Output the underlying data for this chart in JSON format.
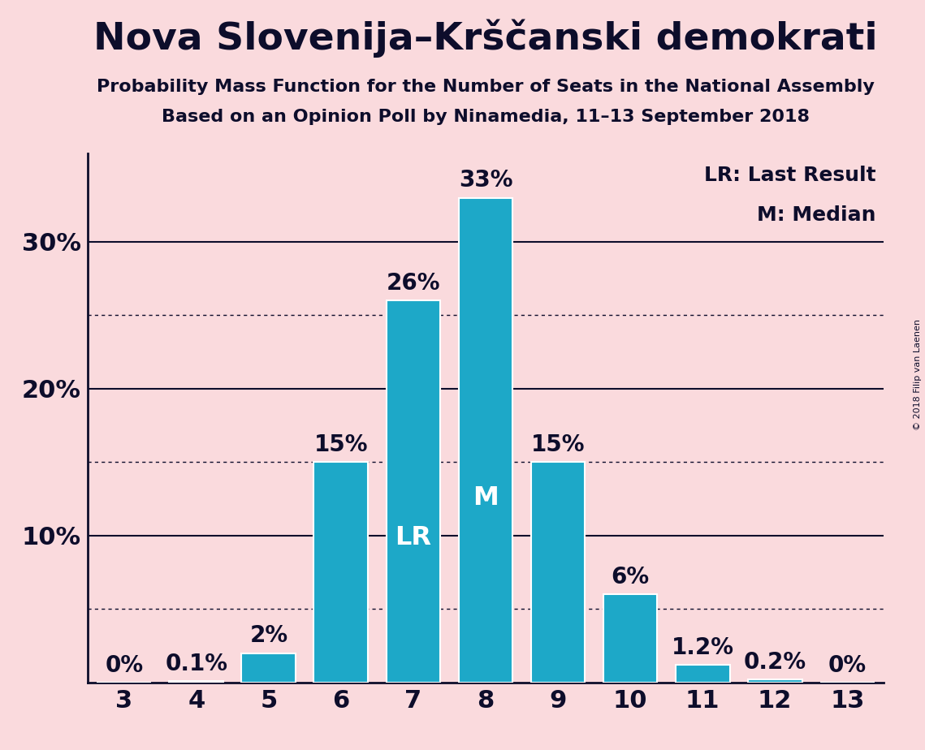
{
  "title": "Nova Slovenija–Krščanski demokrati",
  "subtitle1": "Probability Mass Function for the Number of Seats in the National Assembly",
  "subtitle2": "Based on an Opinion Poll by Ninamedia, 11–13 September 2018",
  "copyright": "© 2018 Filip van Laenen",
  "categories": [
    3,
    4,
    5,
    6,
    7,
    8,
    9,
    10,
    11,
    12,
    13
  ],
  "values": [
    0.0,
    0.1,
    2.0,
    15.0,
    26.0,
    33.0,
    15.0,
    6.0,
    1.2,
    0.2,
    0.0
  ],
  "labels": [
    "0%",
    "0.1%",
    "2%",
    "15%",
    "26%",
    "33%",
    "15%",
    "6%",
    "1.2%",
    "0.2%",
    "0%"
  ],
  "bar_color": "#1da8c8",
  "background_color": "#fadadd",
  "bar_edge_color": "#ffffff",
  "text_color": "#0d0d2b",
  "label_color_inside": "#ffffff",
  "lr_bar": 7,
  "median_bar": 8,
  "lr_label": "LR",
  "median_label": "M",
  "legend_lr": "LR: Last Result",
  "legend_m": "M: Median",
  "ylim": [
    0,
    36
  ],
  "ytick_vals": [
    10,
    20,
    30
  ],
  "ytick_labels": [
    "10%",
    "20%",
    "30%"
  ],
  "dotted_lines": [
    5,
    15,
    25
  ],
  "solid_lines": [
    10,
    20,
    30
  ],
  "title_fontsize": 34,
  "subtitle_fontsize": 16,
  "axis_fontsize": 22,
  "bar_label_fontsize": 20,
  "inside_label_fontsize": 23,
  "legend_fontsize": 18
}
